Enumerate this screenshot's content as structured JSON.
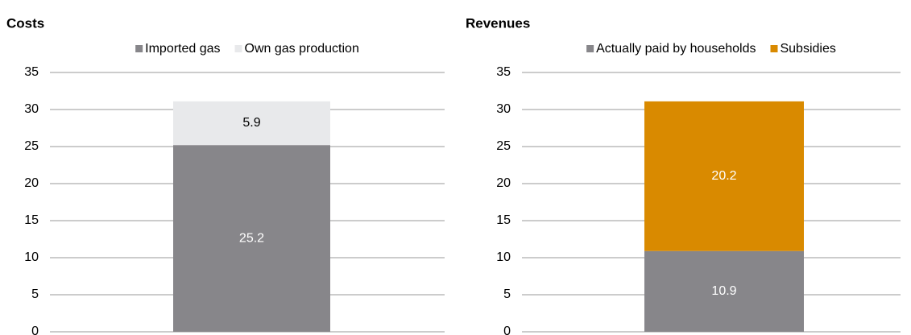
{
  "chart_data": [
    {
      "type": "bar",
      "stacked": true,
      "title": "Costs",
      "series": [
        {
          "name": "Imported gas",
          "color": "#87868a",
          "values": [
            25.2
          ]
        },
        {
          "name": "Own gas production",
          "color": "#e8e9eb",
          "values": [
            5.9
          ]
        }
      ],
      "ylim": [
        0,
        35
      ],
      "yticks": [
        0,
        5,
        10,
        15,
        20,
        25,
        30,
        35
      ],
      "grid": true,
      "legend": "top"
    },
    {
      "type": "bar",
      "stacked": true,
      "title": "Revenues",
      "series": [
        {
          "name": "Actually paid by households",
          "color": "#87868a",
          "values": [
            10.9
          ]
        },
        {
          "name": "Subsidies",
          "color": "#d98a00",
          "values": [
            20.2
          ]
        }
      ],
      "ylim": [
        0,
        35
      ],
      "yticks": [
        0,
        5,
        10,
        15,
        20,
        25,
        30,
        35
      ],
      "grid": true,
      "legend": "top"
    }
  ]
}
